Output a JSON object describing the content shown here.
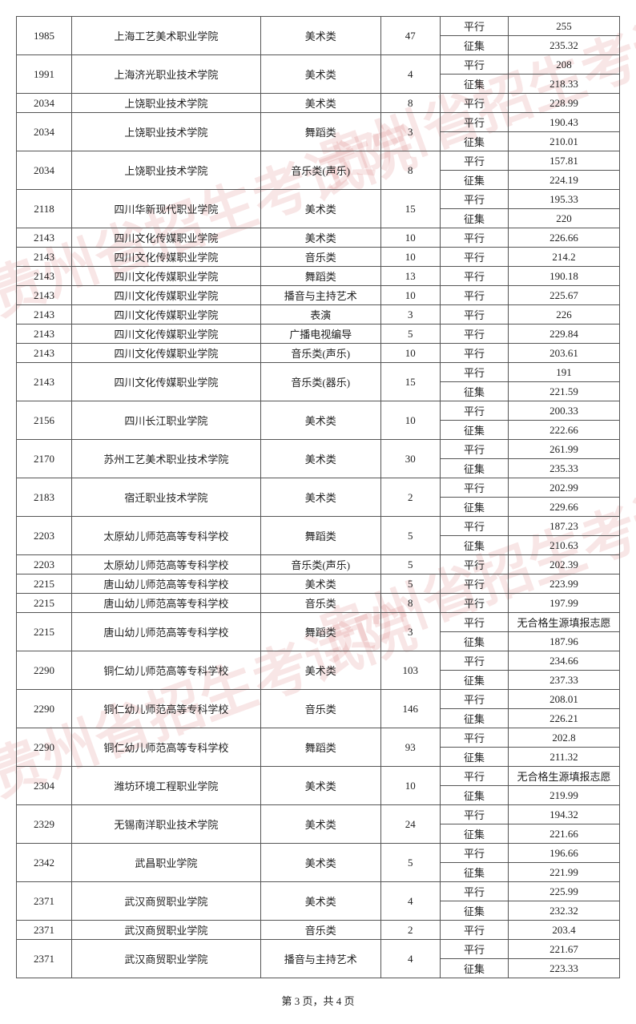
{
  "pager": "第 3 页，共 4 页",
  "labels": {
    "px": "平行",
    "zj": "征集"
  },
  "rows": [
    {
      "code": "1985",
      "school": "上海工艺美术职业学院",
      "cat": "美术类",
      "num": "47",
      "lines": [
        {
          "t": "px",
          "s": "255"
        },
        {
          "t": "zj",
          "s": "235.32"
        }
      ]
    },
    {
      "code": "1991",
      "school": "上海济光职业技术学院",
      "cat": "美术类",
      "num": "4",
      "lines": [
        {
          "t": "px",
          "s": "208"
        },
        {
          "t": "zj",
          "s": "218.33"
        }
      ]
    },
    {
      "code": "2034",
      "school": "上饶职业技术学院",
      "cat": "美术类",
      "num": "8",
      "lines": [
        {
          "t": "px",
          "s": "228.99"
        }
      ]
    },
    {
      "code": "2034",
      "school": "上饶职业技术学院",
      "cat": "舞蹈类",
      "num": "3",
      "lines": [
        {
          "t": "px",
          "s": "190.43"
        },
        {
          "t": "zj",
          "s": "210.01"
        }
      ]
    },
    {
      "code": "2034",
      "school": "上饶职业技术学院",
      "cat": "音乐类(声乐)",
      "num": "8",
      "lines": [
        {
          "t": "px",
          "s": "157.81"
        },
        {
          "t": "zj",
          "s": "224.19"
        }
      ]
    },
    {
      "code": "2118",
      "school": "四川华新现代职业学院",
      "cat": "美术类",
      "num": "15",
      "lines": [
        {
          "t": "px",
          "s": "195.33"
        },
        {
          "t": "zj",
          "s": "220"
        }
      ]
    },
    {
      "code": "2143",
      "school": "四川文化传媒职业学院",
      "cat": "美术类",
      "num": "10",
      "lines": [
        {
          "t": "px",
          "s": "226.66"
        }
      ]
    },
    {
      "code": "2143",
      "school": "四川文化传媒职业学院",
      "cat": "音乐类",
      "num": "10",
      "lines": [
        {
          "t": "px",
          "s": "214.2"
        }
      ]
    },
    {
      "code": "2143",
      "school": "四川文化传媒职业学院",
      "cat": "舞蹈类",
      "num": "13",
      "lines": [
        {
          "t": "px",
          "s": "190.18"
        }
      ]
    },
    {
      "code": "2143",
      "school": "四川文化传媒职业学院",
      "cat": "播音与主持艺术",
      "num": "10",
      "lines": [
        {
          "t": "px",
          "s": "225.67"
        }
      ]
    },
    {
      "code": "2143",
      "school": "四川文化传媒职业学院",
      "cat": "表演",
      "num": "3",
      "lines": [
        {
          "t": "px",
          "s": "226"
        }
      ]
    },
    {
      "code": "2143",
      "school": "四川文化传媒职业学院",
      "cat": "广播电视编导",
      "num": "5",
      "lines": [
        {
          "t": "px",
          "s": "229.84"
        }
      ]
    },
    {
      "code": "2143",
      "school": "四川文化传媒职业学院",
      "cat": "音乐类(声乐)",
      "num": "10",
      "lines": [
        {
          "t": "px",
          "s": "203.61"
        }
      ]
    },
    {
      "code": "2143",
      "school": "四川文化传媒职业学院",
      "cat": "音乐类(器乐)",
      "num": "15",
      "lines": [
        {
          "t": "px",
          "s": "191"
        },
        {
          "t": "zj",
          "s": "221.59"
        }
      ]
    },
    {
      "code": "2156",
      "school": "四川长江职业学院",
      "cat": "美术类",
      "num": "10",
      "lines": [
        {
          "t": "px",
          "s": "200.33"
        },
        {
          "t": "zj",
          "s": "222.66"
        }
      ]
    },
    {
      "code": "2170",
      "school": "苏州工艺美术职业技术学院",
      "cat": "美术类",
      "num": "30",
      "lines": [
        {
          "t": "px",
          "s": "261.99"
        },
        {
          "t": "zj",
          "s": "235.33"
        }
      ]
    },
    {
      "code": "2183",
      "school": "宿迁职业技术学院",
      "cat": "美术类",
      "num": "2",
      "lines": [
        {
          "t": "px",
          "s": "202.99"
        },
        {
          "t": "zj",
          "s": "229.66"
        }
      ]
    },
    {
      "code": "2203",
      "school": "太原幼儿师范高等专科学校",
      "cat": "舞蹈类",
      "num": "5",
      "lines": [
        {
          "t": "px",
          "s": "187.23"
        },
        {
          "t": "zj",
          "s": "210.63"
        }
      ]
    },
    {
      "code": "2203",
      "school": "太原幼儿师范高等专科学校",
      "cat": "音乐类(声乐)",
      "num": "5",
      "lines": [
        {
          "t": "px",
          "s": "202.39"
        }
      ]
    },
    {
      "code": "2215",
      "school": "唐山幼儿师范高等专科学校",
      "cat": "美术类",
      "num": "5",
      "lines": [
        {
          "t": "px",
          "s": "223.99"
        }
      ]
    },
    {
      "code": "2215",
      "school": "唐山幼儿师范高等专科学校",
      "cat": "音乐类",
      "num": "8",
      "lines": [
        {
          "t": "px",
          "s": "197.99"
        }
      ]
    },
    {
      "code": "2215",
      "school": "唐山幼儿师范高等专科学校",
      "cat": "舞蹈类",
      "num": "3",
      "lines": [
        {
          "t": "px",
          "s": "无合格生源填报志愿"
        },
        {
          "t": "zj",
          "s": "187.96"
        }
      ]
    },
    {
      "code": "2290",
      "school": "铜仁幼儿师范高等专科学校",
      "cat": "美术类",
      "num": "103",
      "lines": [
        {
          "t": "px",
          "s": "234.66"
        },
        {
          "t": "zj",
          "s": "237.33"
        }
      ]
    },
    {
      "code": "2290",
      "school": "铜仁幼儿师范高等专科学校",
      "cat": "音乐类",
      "num": "146",
      "lines": [
        {
          "t": "px",
          "s": "208.01"
        },
        {
          "t": "zj",
          "s": "226.21"
        }
      ]
    },
    {
      "code": "2290",
      "school": "铜仁幼儿师范高等专科学校",
      "cat": "舞蹈类",
      "num": "93",
      "lines": [
        {
          "t": "px",
          "s": "202.8"
        },
        {
          "t": "zj",
          "s": "211.32"
        }
      ]
    },
    {
      "code": "2304",
      "school": "潍坊环境工程职业学院",
      "cat": "美术类",
      "num": "10",
      "lines": [
        {
          "t": "px",
          "s": "无合格生源填报志愿"
        },
        {
          "t": "zj",
          "s": "219.99"
        }
      ]
    },
    {
      "code": "2329",
      "school": "无锡南洋职业技术学院",
      "cat": "美术类",
      "num": "24",
      "lines": [
        {
          "t": "px",
          "s": "194.32"
        },
        {
          "t": "zj",
          "s": "221.66"
        }
      ]
    },
    {
      "code": "2342",
      "school": "武昌职业学院",
      "cat": "美术类",
      "num": "5",
      "lines": [
        {
          "t": "px",
          "s": "196.66"
        },
        {
          "t": "zj",
          "s": "221.99"
        }
      ]
    },
    {
      "code": "2371",
      "school": "武汉商贸职业学院",
      "cat": "美术类",
      "num": "4",
      "lines": [
        {
          "t": "px",
          "s": "225.99"
        },
        {
          "t": "zj",
          "s": "232.32"
        }
      ]
    },
    {
      "code": "2371",
      "school": "武汉商贸职业学院",
      "cat": "音乐类",
      "num": "2",
      "lines": [
        {
          "t": "px",
          "s": "203.4"
        }
      ]
    },
    {
      "code": "2371",
      "school": "武汉商贸职业学院",
      "cat": "播音与主持艺术",
      "num": "4",
      "lines": [
        {
          "t": "px",
          "s": "221.67"
        },
        {
          "t": "zj",
          "s": "223.33"
        }
      ]
    }
  ],
  "watermark_text": "贵州省招生考试院",
  "colors": {
    "border": "#555555",
    "text": "#222222",
    "watermark": "rgba(200,50,50,0.12)"
  }
}
